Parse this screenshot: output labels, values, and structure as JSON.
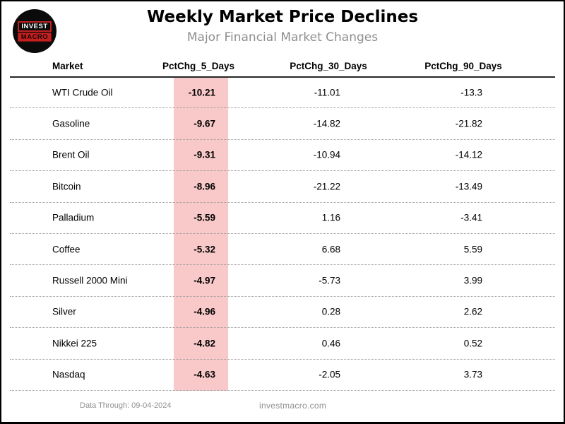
{
  "logo": {
    "line1": "INVEST",
    "line2": "MACRO"
  },
  "header": {
    "title": "Weekly Market Price Declines",
    "subtitle": "Major Financial Market Changes"
  },
  "table": {
    "columns": [
      "Market",
      "PctChg_5_Days",
      "PctChg_30_Days",
      "PctChg_90_Days"
    ],
    "highlight_color": "#f9c9c9",
    "rows": [
      {
        "market": "WTI Crude Oil",
        "pctchg_5_days": "-10.21",
        "pctchg_30_days": "-11.01",
        "pctchg_90_days": "-13.3"
      },
      {
        "market": "Gasoline",
        "pctchg_5_days": "-9.67",
        "pctchg_30_days": "-14.82",
        "pctchg_90_days": "-21.82"
      },
      {
        "market": "Brent Oil",
        "pctchg_5_days": "-9.31",
        "pctchg_30_days": "-10.94",
        "pctchg_90_days": "-14.12"
      },
      {
        "market": "Bitcoin",
        "pctchg_5_days": "-8.96",
        "pctchg_30_days": "-21.22",
        "pctchg_90_days": "-13.49"
      },
      {
        "market": "Palladium",
        "pctchg_5_days": "-5.59",
        "pctchg_30_days": "1.16",
        "pctchg_90_days": "-3.41"
      },
      {
        "market": "Coffee",
        "pctchg_5_days": "-5.32",
        "pctchg_30_days": "6.68",
        "pctchg_90_days": "5.59"
      },
      {
        "market": "Russell 2000 Mini",
        "pctchg_5_days": "-4.97",
        "pctchg_30_days": "-5.73",
        "pctchg_90_days": "3.99"
      },
      {
        "market": "Silver",
        "pctchg_5_days": "-4.96",
        "pctchg_30_days": "0.28",
        "pctchg_90_days": "2.62"
      },
      {
        "market": "Nikkei 225",
        "pctchg_5_days": "-4.82",
        "pctchg_30_days": "0.46",
        "pctchg_90_days": "0.52"
      },
      {
        "market": "Nasdaq",
        "pctchg_5_days": "-4.63",
        "pctchg_30_days": "-2.05",
        "pctchg_90_days": "3.73"
      }
    ]
  },
  "footer": {
    "data_through": "Data Through: 09-04-2024",
    "website": "investmacro.com"
  },
  "chart_data": {
    "type": "table",
    "title": "Weekly Market Price Declines",
    "subtitle": "Major Financial Market Changes",
    "columns": [
      "Market",
      "PctChg_5_Days",
      "PctChg_30_Days",
      "PctChg_90_Days"
    ],
    "rows": [
      [
        "WTI Crude Oil",
        -10.21,
        -11.01,
        -13.3
      ],
      [
        "Gasoline",
        -9.67,
        -14.82,
        -21.82
      ],
      [
        "Brent Oil",
        -9.31,
        -10.94,
        -14.12
      ],
      [
        "Bitcoin",
        -8.96,
        -21.22,
        -13.49
      ],
      [
        "Palladium",
        -5.59,
        1.16,
        -3.41
      ],
      [
        "Coffee",
        -5.32,
        6.68,
        5.59
      ],
      [
        "Russell 2000 Mini",
        -4.97,
        -5.73,
        3.99
      ],
      [
        "Silver",
        -4.96,
        0.28,
        2.62
      ],
      [
        "Nikkei 225",
        -4.82,
        0.46,
        0.52
      ],
      [
        "Nasdaq",
        -4.63,
        -2.05,
        3.73
      ]
    ],
    "highlighted_column": "PctChg_5_Days",
    "layout_hints": {
      "row_separators": "dotted",
      "header_rule": "solid",
      "highlight": "light red band on PctChg_5_Days column"
    },
    "notes": "Data Through: 09-04-2024"
  }
}
